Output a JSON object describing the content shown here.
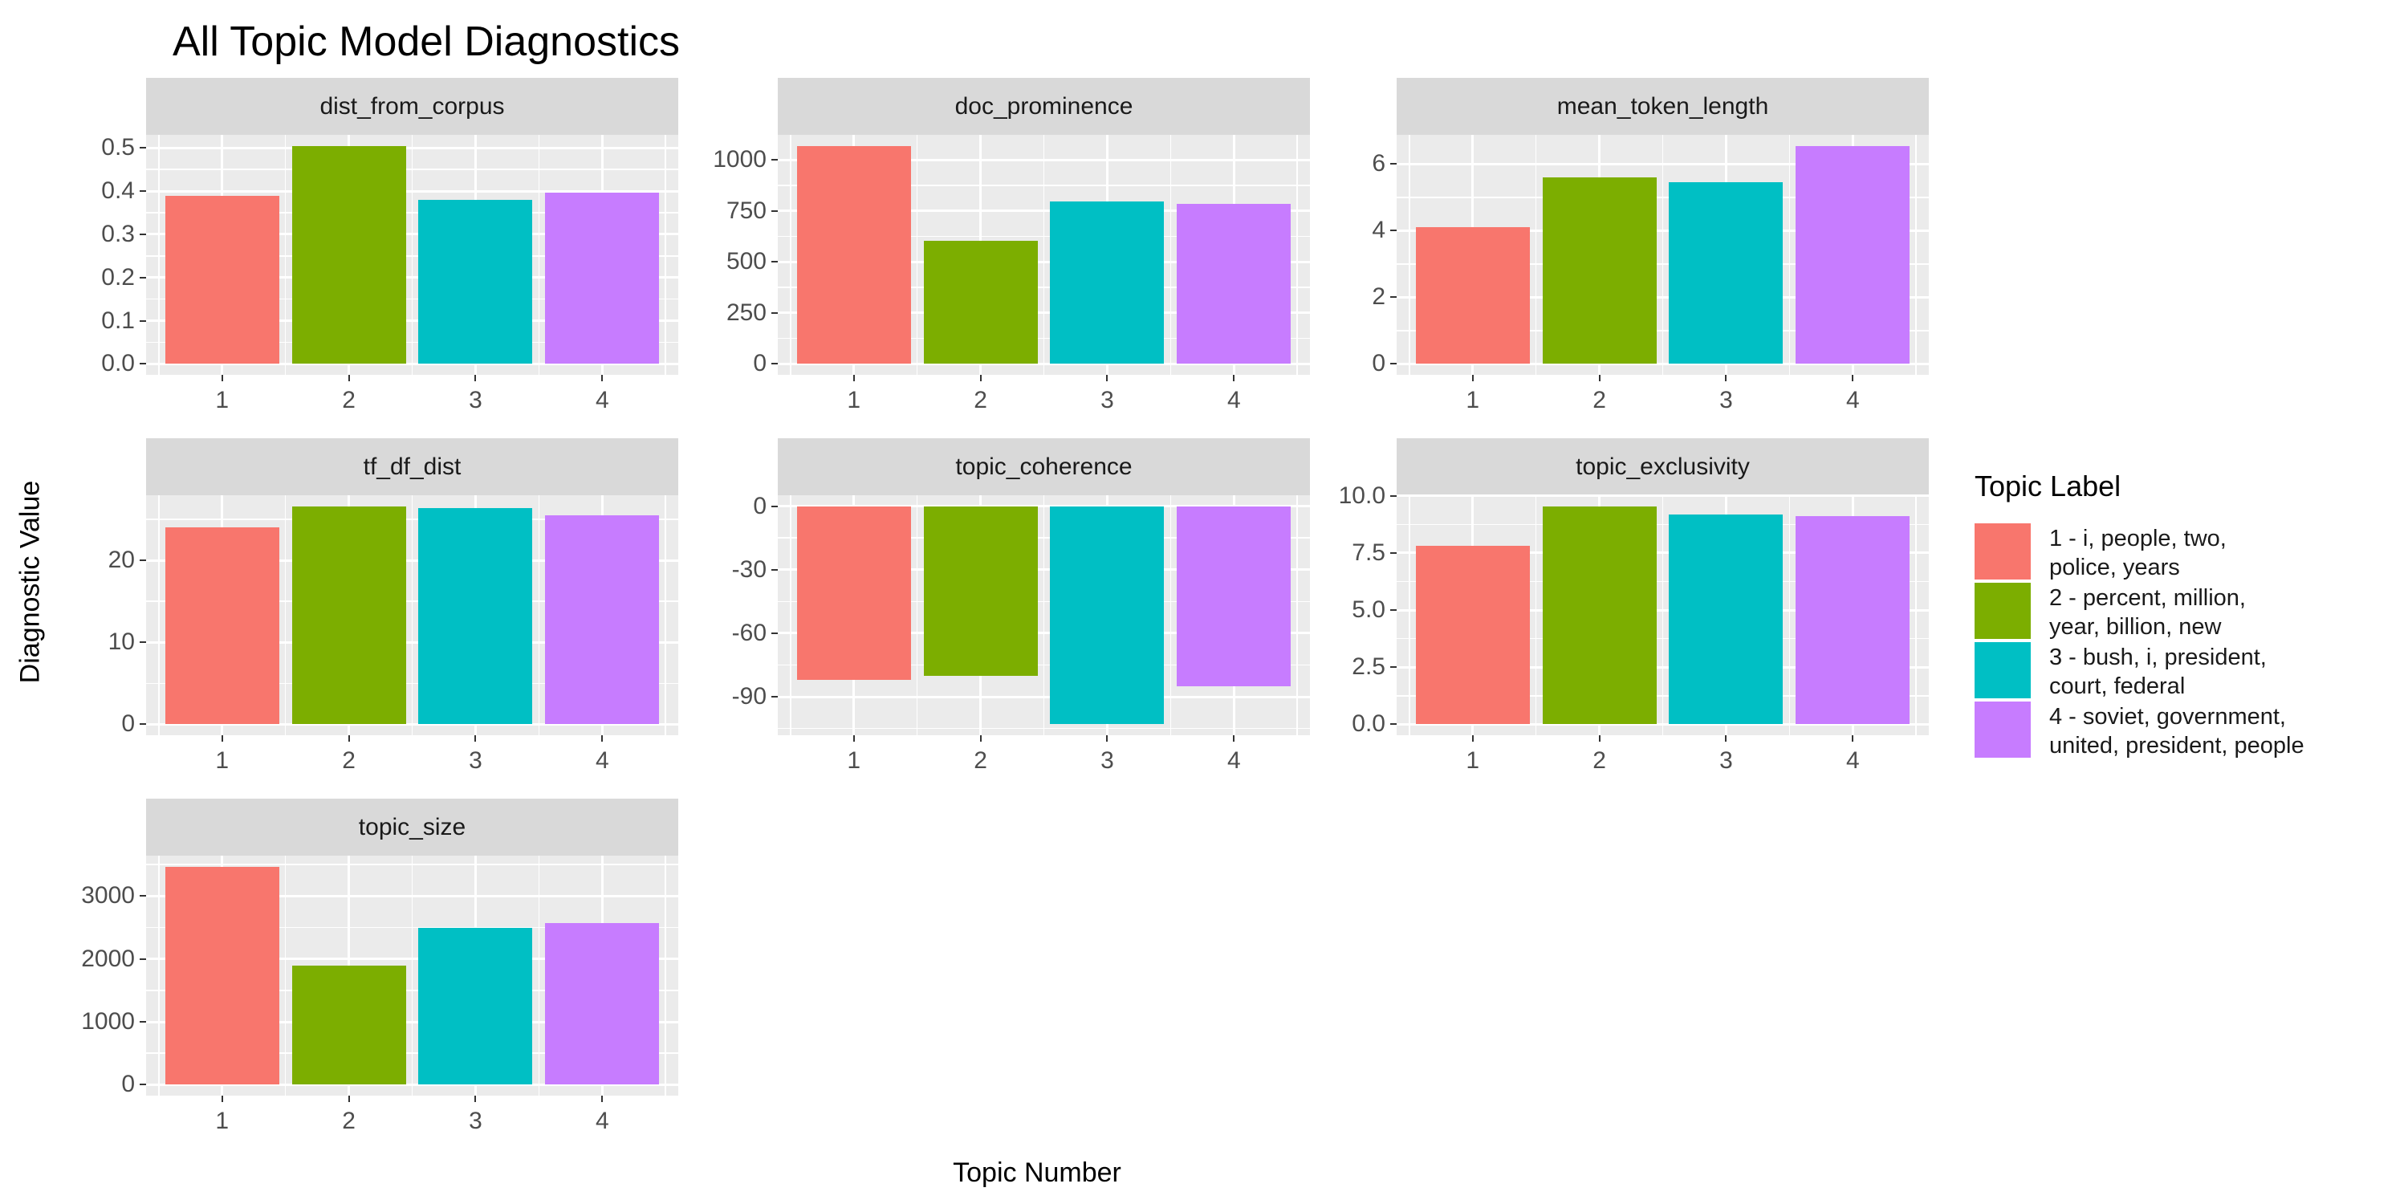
{
  "chart_data": {
    "type": "bar",
    "title": "All Topic Model Diagnostics",
    "xlabel": "Topic Number",
    "ylabel": "Diagnostic Value",
    "legend_title": "Topic Label",
    "categories": [
      "1",
      "2",
      "3",
      "4"
    ],
    "colors": [
      "#F8766D",
      "#7CAE00",
      "#00BFC4",
      "#C77CFF"
    ],
    "panel_background": "#EBEBEB",
    "strip_background": "#D9D9D9",
    "gridline_color": "#FFFFFF",
    "facets": [
      {
        "label": "dist_from_corpus",
        "values": [
          0.39,
          0.505,
          0.38,
          0.397
        ],
        "ylim": [
          -0.0253,
          0.5303
        ],
        "ticks": [
          0,
          0.1,
          0.2,
          0.3,
          0.4,
          0.5
        ],
        "tick_labels": [
          "0.0",
          "0.1",
          "0.2",
          "0.3",
          "0.4",
          "0.5"
        ]
      },
      {
        "label": "doc_prominence",
        "values": [
          1070,
          605,
          795,
          785
        ],
        "ylim": [
          -53.5,
          1123.5
        ],
        "ticks": [
          0,
          250,
          500,
          750,
          1000
        ],
        "tick_labels": [
          "0",
          "250",
          "500",
          "750",
          "1000"
        ]
      },
      {
        "label": "mean_token_length",
        "values": [
          4.1,
          5.6,
          5.45,
          6.55
        ],
        "ylim": [
          -0.3275,
          6.8775
        ],
        "ticks": [
          0,
          2,
          4,
          6
        ],
        "tick_labels": [
          "0",
          "2",
          "4",
          "6"
        ]
      },
      {
        "label": "tf_df_dist",
        "values": [
          24,
          26.6,
          26.4,
          25.5
        ],
        "ylim": [
          -1.33,
          27.93
        ],
        "ticks": [
          0,
          10,
          20
        ],
        "tick_labels": [
          "0",
          "10",
          "20"
        ]
      },
      {
        "label": "topic_coherence",
        "values": [
          -82,
          -80,
          -103,
          -85
        ],
        "ylim": [
          -108.15,
          5.15
        ],
        "ticks": [
          -90,
          -60,
          -30,
          0
        ],
        "tick_labels": [
          "-90",
          "-60",
          "-30",
          "0"
        ]
      },
      {
        "label": "topic_exclusivity",
        "values": [
          7.8,
          9.55,
          9.2,
          9.1
        ],
        "ylim": [
          -0.4775,
          10.0275
        ],
        "ticks": [
          0,
          2.5,
          5,
          7.5,
          10
        ],
        "tick_labels": [
          "0.0",
          "2.5",
          "5.0",
          "7.5",
          "10.0"
        ]
      },
      {
        "label": "topic_size",
        "values": [
          3470,
          1900,
          2500,
          2570
        ],
        "ylim": [
          -173.5,
          3643.5
        ],
        "ticks": [
          0,
          1000,
          2000,
          3000
        ],
        "tick_labels": [
          "0",
          "1000",
          "2000",
          "3000"
        ]
      }
    ],
    "legend_entries": [
      {
        "label": "1 - i, people, two,\npolice, years",
        "color": "#F8766D"
      },
      {
        "label": "2 - percent, million,\nyear, billion, new",
        "color": "#7CAE00"
      },
      {
        "label": "3 - bush, i, president,\ncourt, federal",
        "color": "#00BFC4"
      },
      {
        "label": "4 - soviet, government,\nunited, president, people",
        "color": "#C77CFF"
      }
    ]
  }
}
